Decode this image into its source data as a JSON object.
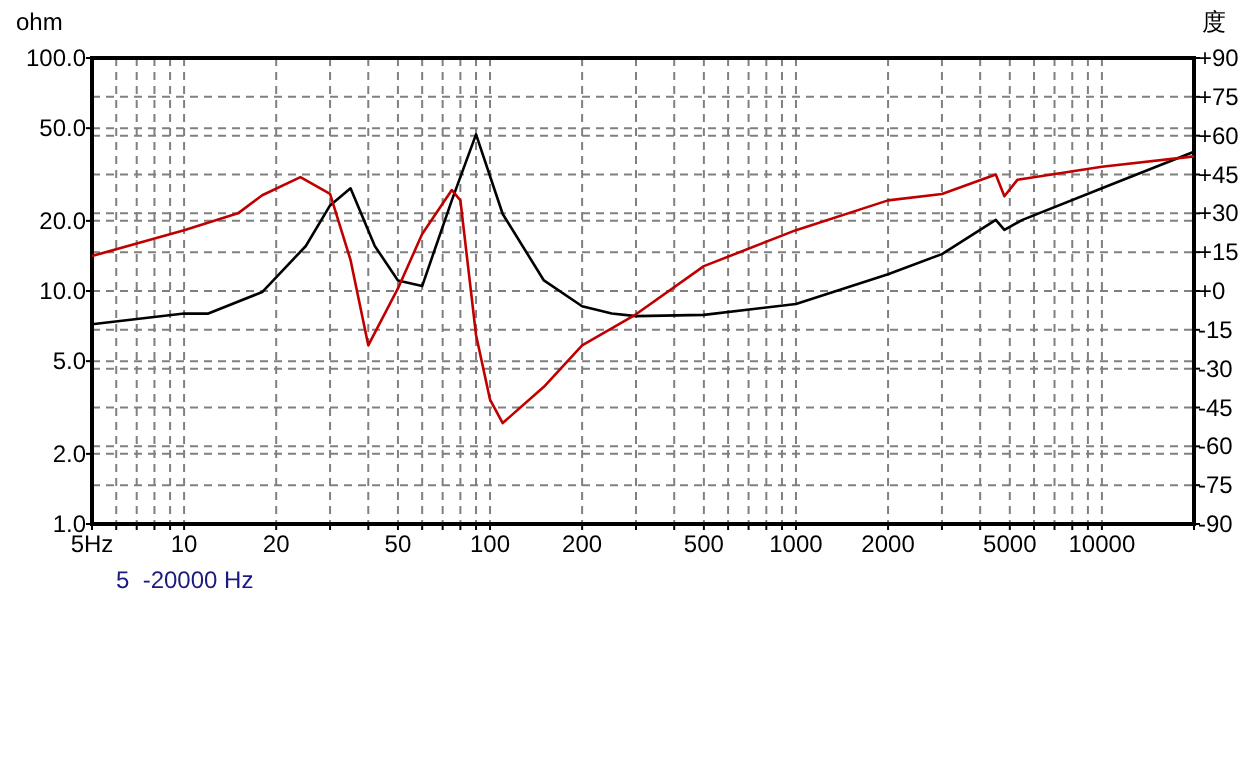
{
  "chart_data": {
    "type": "line",
    "log": "xy",
    "grid": true,
    "ylabel": "ohm",
    "y2label": "度",
    "annotations": [
      "5  -20000 Hz"
    ],
    "xlim": [
      5,
      20000
    ],
    "ylim": [
      1,
      100
    ],
    "y2lim": [
      -90,
      90
    ],
    "xticks": [
      {
        "value": 5,
        "label": "5Hz"
      },
      {
        "value": 6,
        "label": null
      },
      {
        "value": 7,
        "label": null
      },
      {
        "value": 8,
        "label": null
      },
      {
        "value": 9,
        "label": null
      },
      10,
      20,
      {
        "value": 30,
        "label": null
      },
      {
        "value": 40,
        "label": null
      },
      50,
      {
        "value": 60,
        "label": null
      },
      {
        "value": 70,
        "label": null
      },
      {
        "value": 80,
        "label": null
      },
      {
        "value": 90,
        "label": null
      },
      100,
      200,
      {
        "value": 300,
        "label": null
      },
      {
        "value": 400,
        "label": null
      },
      500,
      {
        "value": 600,
        "label": null
      },
      {
        "value": 700,
        "label": null
      },
      {
        "value": 800,
        "label": null
      },
      {
        "value": 900,
        "label": null
      },
      1000,
      2000,
      {
        "value": 3000,
        "label": null
      },
      {
        "value": 4000,
        "label": null
      },
      5000,
      {
        "value": 6000,
        "label": null
      },
      {
        "value": 7000,
        "label": null
      },
      {
        "value": 8000,
        "label": null
      },
      {
        "value": 9000,
        "label": null
      },
      10000,
      {
        "value": 20000,
        "label": null
      }
    ],
    "yticks": [
      {
        "value": 1,
        "label": "1.0"
      },
      {
        "value": 2,
        "label": "2.0"
      },
      {
        "value": 5,
        "label": "5.0"
      },
      {
        "value": 10,
        "label": "10.0"
      },
      {
        "value": 20,
        "label": "20.0"
      },
      {
        "value": 50,
        "label": "50.0"
      },
      {
        "value": 100,
        "label": "100.0"
      }
    ],
    "y2ticks": [
      {
        "value": 90,
        "label": "+90"
      },
      {
        "value": 75,
        "label": "+75"
      },
      {
        "value": 60,
        "label": "+60"
      },
      {
        "value": 45,
        "label": "+45"
      },
      {
        "value": 30,
        "label": "+30"
      },
      {
        "value": 15,
        "label": "+15"
      },
      {
        "value": 0,
        "label": "+0"
      },
      -15,
      -30,
      -45,
      -60,
      -75,
      -90
    ],
    "series": [
      {
        "color": "#000000",
        "x": [
          5,
          10,
          12,
          18,
          25,
          30,
          35,
          42,
          50,
          60,
          75,
          90,
          110,
          150,
          200,
          250,
          300,
          500,
          1000,
          2000,
          3000,
          4500,
          4800,
          5500,
          10000,
          20000
        ],
        "values": [
          7.2,
          8.0,
          8.0,
          9.9,
          15.6,
          23.3,
          27.6,
          15.6,
          11.1,
          10.5,
          24.5,
          47,
          21.4,
          11.1,
          8.6,
          8.0,
          7.8,
          7.9,
          8.8,
          11.8,
          14.4,
          20.2,
          18.3,
          20.2,
          27.6,
          39.6
        ]
      },
      {
        "color": "#c00000",
        "axis": "y2",
        "x": [
          5,
          10,
          15,
          18,
          24,
          30,
          35,
          40,
          50,
          60,
          75,
          80,
          90,
          100,
          110,
          150,
          200,
          300,
          500,
          1000,
          2000,
          3000,
          4500,
          4800,
          5300,
          10000,
          20000
        ],
        "values": [
          13.5,
          23.5,
          30,
          37,
          44,
          37.5,
          12,
          -21,
          1,
          22,
          39,
          35,
          -17,
          -42,
          -51,
          -37,
          -21,
          -9,
          9.6,
          23.5,
          35,
          37.5,
          45,
          36.6,
          43,
          48,
          52
        ]
      }
    ]
  }
}
